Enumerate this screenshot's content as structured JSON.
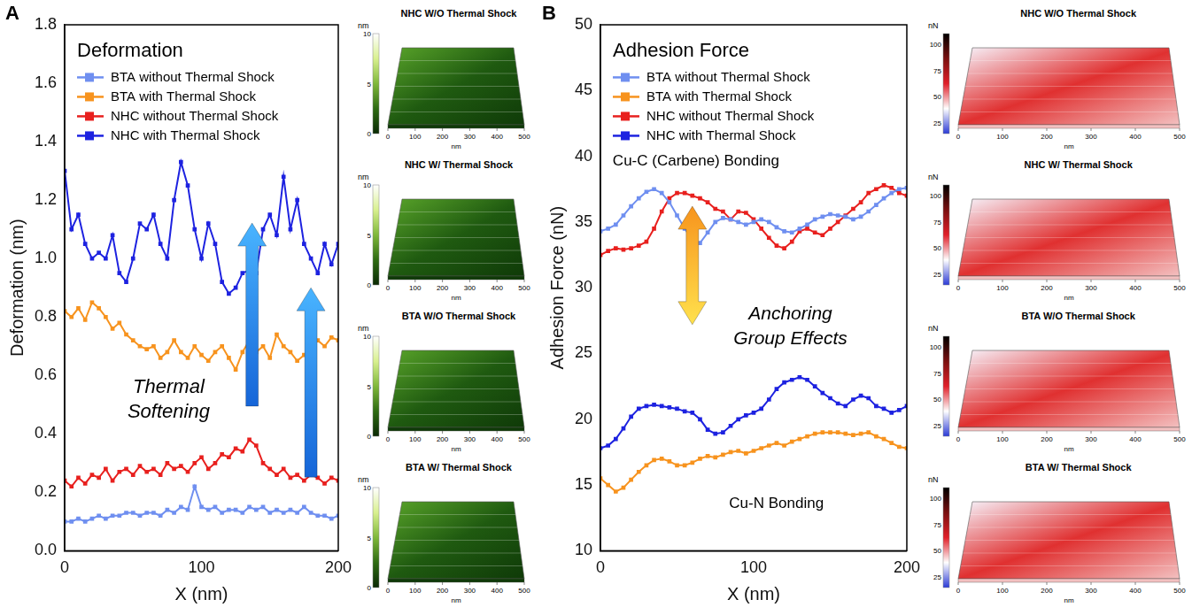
{
  "chart_data": [
    {
      "type": "scatter",
      "panel": "A",
      "title": "Deformation",
      "x_label": "X (nm)",
      "y_label": "Deformation (nm)",
      "xlim": [
        0,
        200
      ],
      "xticks": [
        0,
        100,
        200
      ],
      "ylim": [
        0,
        1.8
      ],
      "yticks": [
        {
          "value": 0,
          "label": "0.0"
        },
        0.2,
        0.4,
        0.6,
        0.8,
        {
          "value": 1,
          "label": "1.0"
        },
        1.2,
        1.4,
        1.6,
        1.8
      ],
      "grid": false,
      "legend": "upper left",
      "marker": "square",
      "line_style": "solid",
      "annotations": [
        "Thermal Softening"
      ],
      "x": [
        0,
        5,
        10,
        15,
        20,
        25,
        30,
        35,
        40,
        45,
        50,
        55,
        60,
        65,
        70,
        75,
        80,
        85,
        90,
        95,
        100,
        105,
        110,
        115,
        120,
        125,
        130,
        135,
        140,
        145,
        150,
        155,
        160,
        165,
        170,
        175,
        180,
        185,
        190,
        195,
        200
      ],
      "series": [
        {
          "name": "BTA without Thermal Shock",
          "color": "#6f8ff0",
          "values": [
            0.1,
            0.1,
            0.11,
            0.1,
            0.11,
            0.12,
            0.11,
            0.12,
            0.12,
            0.13,
            0.13,
            0.12,
            0.13,
            0.13,
            0.12,
            0.14,
            0.13,
            0.15,
            0.14,
            0.22,
            0.15,
            0.14,
            0.15,
            0.13,
            0.14,
            0.14,
            0.13,
            0.15,
            0.14,
            0.15,
            0.13,
            0.14,
            0.13,
            0.14,
            0.13,
            0.15,
            0.13,
            0.12,
            0.12,
            0.11,
            0.12
          ]
        },
        {
          "name": "BTA with Thermal Shock",
          "color": "#f7931e",
          "values": [
            0.82,
            0.8,
            0.83,
            0.79,
            0.85,
            0.83,
            0.8,
            0.76,
            0.78,
            0.74,
            0.72,
            0.7,
            0.69,
            0.7,
            0.66,
            0.68,
            0.72,
            0.68,
            0.66,
            0.7,
            0.67,
            0.65,
            0.68,
            0.7,
            0.66,
            0.62,
            0.68,
            0.72,
            0.68,
            0.7,
            0.66,
            0.74,
            0.7,
            0.68,
            0.65,
            0.67,
            0.69,
            0.72,
            0.7,
            0.73,
            0.72
          ]
        },
        {
          "name": "NHC without Thermal Shock",
          "color": "#e8201e",
          "values": [
            0.24,
            0.22,
            0.25,
            0.23,
            0.26,
            0.25,
            0.28,
            0.24,
            0.27,
            0.28,
            0.26,
            0.29,
            0.27,
            0.28,
            0.26,
            0.3,
            0.28,
            0.29,
            0.27,
            0.3,
            0.32,
            0.28,
            0.3,
            0.33,
            0.32,
            0.35,
            0.34,
            0.38,
            0.36,
            0.3,
            0.28,
            0.26,
            0.28,
            0.25,
            0.26,
            0.24,
            0.26,
            0.25,
            0.23,
            0.25,
            0.24
          ]
        },
        {
          "name": "NHC with Thermal Shock",
          "color": "#1d22e0",
          "values": [
            1.3,
            1.1,
            1.15,
            1.05,
            1.0,
            1.02,
            1.0,
            1.08,
            0.95,
            0.92,
            1.0,
            1.12,
            1.1,
            1.15,
            1.05,
            1.0,
            1.2,
            1.33,
            1.25,
            1.1,
            1.0,
            1.12,
            1.05,
            0.92,
            0.88,
            0.9,
            0.95,
            0.96,
            0.95,
            1.1,
            1.15,
            1.08,
            1.28,
            1.1,
            1.2,
            1.05,
            1.0,
            0.95,
            1.05,
            0.98,
            1.05
          ]
        }
      ],
      "images": [
        {
          "title": "NHC W/O Thermal Shock",
          "colorbar": {
            "label": "nm",
            "range": [
              0,
              10
            ],
            "ticks": [
              0,
              5,
              10
            ]
          },
          "xticks": [
            0,
            100,
            200,
            300,
            400,
            500
          ],
          "x_label": "nm"
        },
        {
          "title": "NHC W/ Thermal Shock",
          "colorbar": {
            "label": "nm",
            "range": [
              0,
              10
            ],
            "ticks": [
              0,
              5,
              10
            ]
          },
          "xticks": [
            0,
            100,
            200,
            300,
            400,
            500
          ],
          "x_label": "nm"
        },
        {
          "title": "BTA W/O Thermal Shock",
          "colorbar": {
            "label": "nm",
            "range": [
              0,
              10
            ],
            "ticks": [
              0,
              5,
              10
            ]
          },
          "xticks": [
            0,
            100,
            200,
            300,
            400,
            500
          ],
          "x_label": "nm"
        },
        {
          "title": "BTA W/ Thermal Shock",
          "colorbar": {
            "label": "nm",
            "range": [
              0,
              10
            ],
            "ticks": [
              0,
              5,
              10
            ]
          },
          "xticks": [
            0,
            100,
            200,
            300,
            400,
            500
          ],
          "x_label": "nm"
        }
      ]
    },
    {
      "type": "scatter",
      "panel": "B",
      "title": "Adhesion Force",
      "x_label": "X (nm)",
      "y_label": "Adhesion Force (nN)",
      "xlim": [
        0,
        200
      ],
      "xticks": [
        0,
        100,
        200
      ],
      "ylim": [
        10,
        50
      ],
      "yticks": [
        10,
        15,
        20,
        25,
        30,
        35,
        40,
        45,
        50
      ],
      "grid": false,
      "legend": "upper left",
      "marker": "square",
      "line_style": "solid",
      "annotations": [
        "Cu-C (Carbene) Bonding",
        "Anchoring Group Effects",
        "Cu-N Bonding"
      ],
      "x": [
        0,
        5,
        10,
        15,
        20,
        25,
        30,
        35,
        40,
        45,
        50,
        55,
        60,
        65,
        70,
        75,
        80,
        85,
        90,
        95,
        100,
        105,
        110,
        115,
        120,
        125,
        130,
        135,
        140,
        145,
        150,
        155,
        160,
        165,
        170,
        175,
        180,
        185,
        190,
        195,
        200
      ],
      "series": [
        {
          "name": "BTA without Thermal Shock",
          "color": "#6f8ff0",
          "values": [
            34.3,
            34.5,
            34.8,
            35.5,
            36.2,
            36.8,
            37.3,
            37.5,
            37.2,
            36.5,
            35.5,
            34.5,
            33.6,
            33.4,
            34.2,
            35.0,
            35.3,
            35.2,
            35.0,
            34.8,
            35.0,
            35.2,
            35.0,
            34.6,
            34.3,
            34.2,
            34.5,
            34.8,
            35.2,
            35.4,
            35.6,
            35.5,
            35.4,
            35.2,
            35.4,
            35.8,
            36.3,
            36.8,
            37.2,
            37.5,
            37.6
          ]
        },
        {
          "name": "BTA with Thermal Shock",
          "color": "#f7931e",
          "values": [
            15.5,
            15.0,
            14.5,
            14.8,
            15.4,
            16.0,
            16.5,
            16.9,
            17.0,
            16.8,
            16.5,
            16.5,
            16.7,
            17.0,
            17.2,
            17.1,
            17.3,
            17.5,
            17.6,
            17.4,
            17.6,
            17.8,
            18.0,
            18.2,
            18.0,
            18.3,
            18.5,
            18.7,
            18.9,
            19.0,
            19.0,
            19.0,
            18.9,
            18.8,
            18.9,
            19.0,
            18.7,
            18.5,
            18.2,
            17.9,
            17.8
          ]
        },
        {
          "name": "NHC without Thermal Shock",
          "color": "#e8201e",
          "values": [
            32.5,
            32.8,
            33.0,
            32.9,
            33.0,
            33.2,
            33.5,
            34.5,
            35.8,
            36.8,
            37.2,
            37.2,
            37.0,
            36.8,
            36.5,
            36.0,
            35.8,
            35.2,
            35.8,
            35.7,
            35.2,
            34.5,
            33.8,
            33.2,
            33.0,
            33.5,
            34.3,
            34.5,
            34.2,
            34.0,
            34.5,
            35.0,
            35.5,
            36.0,
            36.5,
            37.2,
            37.5,
            37.8,
            37.6,
            37.2,
            37.0
          ]
        },
        {
          "name": "NHC with Thermal Shock",
          "color": "#1d22e0",
          "values": [
            17.8,
            18.0,
            18.5,
            19.3,
            20.2,
            20.8,
            21.0,
            21.1,
            21.0,
            20.9,
            20.8,
            20.6,
            20.5,
            20.0,
            19.2,
            18.9,
            19.0,
            19.5,
            20.0,
            20.3,
            20.5,
            20.8,
            21.5,
            22.3,
            22.8,
            23.0,
            23.2,
            23.0,
            22.5,
            22.0,
            21.6,
            21.2,
            21.0,
            21.5,
            21.8,
            21.6,
            21.0,
            20.8,
            20.5,
            20.7,
            21.0
          ]
        }
      ],
      "images": [
        {
          "title": "NHC W/O Thermal Shock",
          "colorbar": {
            "label": "nN",
            "range": [
              15,
              110
            ],
            "ticks": [
              25,
              50,
              75,
              100
            ]
          },
          "xticks": [
            0,
            100,
            200,
            300,
            400,
            500
          ],
          "x_label": "nm"
        },
        {
          "title": "NHC W/ Thermal Shock",
          "colorbar": {
            "label": "nN",
            "range": [
              15,
              110
            ],
            "ticks": [
              25,
              50,
              75,
              100
            ]
          },
          "xticks": [
            0,
            100,
            200,
            300,
            400,
            500
          ],
          "x_label": "nm"
        },
        {
          "title": "BTA W/O Thermal Shock",
          "colorbar": {
            "label": "nN",
            "range": [
              15,
              110
            ],
            "ticks": [
              25,
              50,
              75,
              100
            ]
          },
          "xticks": [
            0,
            100,
            200,
            300,
            400,
            500
          ],
          "x_label": "nm"
        },
        {
          "title": "BTA W/ Thermal Shock",
          "colorbar": {
            "label": "nN",
            "range": [
              15,
              110
            ],
            "ticks": [
              25,
              50,
              75,
              100
            ]
          },
          "xticks": [
            0,
            100,
            200,
            300,
            400,
            500
          ],
          "x_label": "nm"
        }
      ]
    }
  ]
}
